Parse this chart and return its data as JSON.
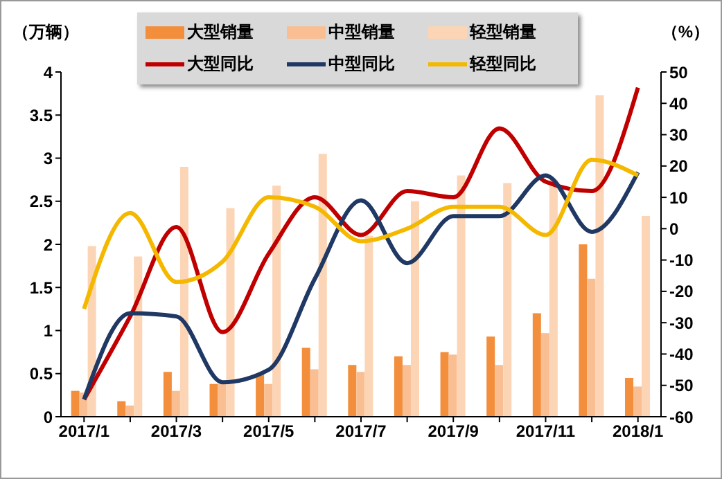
{
  "chart_data": {
    "type": "bar",
    "ylabel": "（万辆）",
    "y2label": "（%）",
    "categories": [
      "2017/1",
      null,
      "2017/3",
      null,
      "2017/5",
      null,
      "2017/7",
      null,
      "2017/9",
      null,
      "2017/11",
      null,
      "2018/1"
    ],
    "series": [
      {
        "name": "大型销量",
        "color": "#f28e3c",
        "values": [
          0.3,
          0.18,
          0.52,
          0.38,
          0.5,
          0.8,
          0.6,
          0.7,
          0.75,
          0.93,
          1.2,
          2.0,
          0.45
        ]
      },
      {
        "name": "中型销量",
        "color": "#f9bf93",
        "values": [
          0.28,
          0.13,
          0.3,
          0.38,
          0.38,
          0.55,
          0.52,
          0.6,
          0.72,
          0.6,
          0.97,
          1.6,
          0.35
        ]
      },
      {
        "name": "轻型销量",
        "color": "#fbd5b5",
        "values": [
          1.98,
          1.86,
          2.9,
          2.42,
          2.68,
          3.05,
          2.1,
          2.5,
          2.8,
          2.71,
          2.75,
          3.73,
          2.33
        ]
      },
      {
        "name": "大型同比",
        "type": "line",
        "axis": "y2",
        "color": "#c00000",
        "values": [
          -54.5,
          -28,
          0.5,
          -33,
          -8,
          10,
          -2,
          12,
          10,
          32,
          15,
          12,
          45
        ]
      },
      {
        "name": "中型同比",
        "type": "line",
        "axis": "y2",
        "color": "#1f3864",
        "values": [
          -54.5,
          -27,
          -28,
          -49,
          -45,
          -16,
          9,
          -11,
          4,
          4,
          17,
          -1,
          18
        ]
      },
      {
        "name": "轻型同比",
        "type": "line",
        "axis": "y2",
        "color": "#f5b800",
        "values": [
          -25.6,
          5,
          -17,
          -10.5,
          10,
          7,
          -4,
          0,
          7,
          7,
          -2,
          22,
          17
        ]
      }
    ],
    "ylim": [
      0,
      4
    ],
    "yticks": [
      0,
      0.5,
      1,
      1.5,
      2,
      2.5,
      3,
      3.5,
      4
    ],
    "y2lim": [
      -60,
      50
    ],
    "y2ticks": [
      -60,
      -50,
      -40,
      -30,
      -20,
      -10,
      0,
      10,
      20,
      30,
      40,
      50
    ],
    "legend": "top",
    "grid": false
  }
}
